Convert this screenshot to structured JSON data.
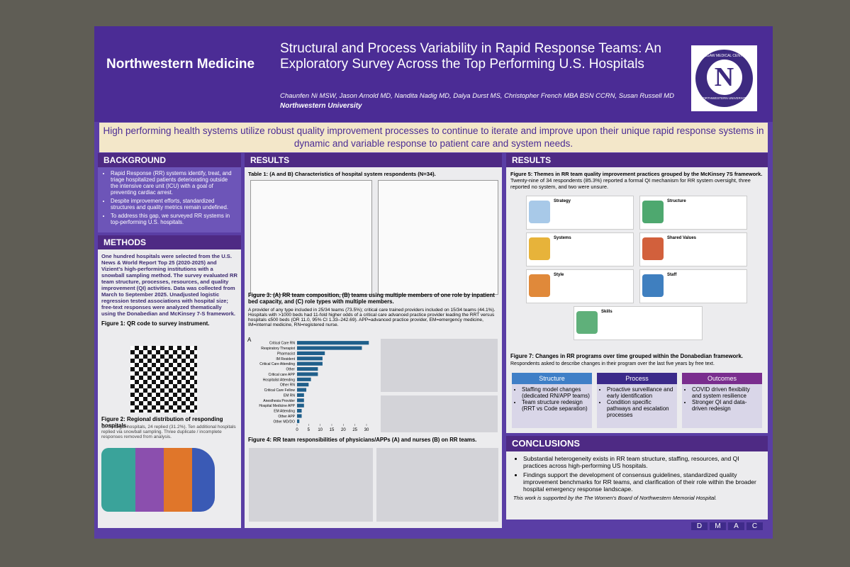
{
  "header": {
    "logo": "Northwestern Medicine",
    "title": "Structural and Process Variability in Rapid Response Teams: An Exploratory Survey Across the Top Performing U.S. Hospitals",
    "authors": "Chaunfen Ni MSW, Jason Arnold MD, Nandita Nadig MD, Dalya Durst MS, Christopher French MBA BSN CCRN, Susan Russell MD",
    "affiliation": "Northwestern University",
    "seal_top": "MCGAW MEDICAL CENTER",
    "seal_letter": "N",
    "seal_bottom": "NORTHWESTERN UNIVERSITY"
  },
  "banner": "High performing health systems utilize robust quality improvement processes to continue to iterate and improve upon their unique rapid response systems in dynamic and variable response to patient care and system needs.",
  "background": {
    "heading": "BACKGROUND",
    "bullets": [
      "Rapid Response (RR) systems identify, treat, and triage hospitalized patients deteriorating outside the intensive care unit (ICU) with a goal of preventing cardiac arrest.",
      "Despite improvement efforts, standardized structures and quality metrics remain undefined.",
      "To address this gap, we surveyed RR systems in top-performing U.S. hospitals."
    ]
  },
  "methods": {
    "heading": "METHODS",
    "text": "One hundred hospitals were selected from the U.S. News & World Report Top 25 (2020-2025) and Vizient's high-performing institutions with a snowball sampling method. The survey evaluated RR team structure, processes, resources, and quality improvement (QI) activities. Data was collected from March to September 2025. Unadjusted logistic regression tested associations with hospital size; free-text responses were analyzed thematically using the Donabedian and McKinsey 7-S framework.",
    "figure1": "Figure 1: QR code to survey instrument.",
    "figure2": "Figure 2: Regional distribution of responding hospitals.",
    "figure2_note": "Of 77 target hospitals, 24 replied (31.2%). Ten additional hospitals replied via snowball sampling. Three duplicate / incomplete responses removed from analysis."
  },
  "results_left": {
    "heading": "RESULTS",
    "table_caption": "Table 1: (A and B) Characteristics of hospital system respondents (N=34).",
    "figure3_caption": "Figure 3: (A) RR team composition, (B) teams using multiple members of one role by inpatient bed capacity, and (C) role types with multiple members.",
    "figure3_text": "A provider of any type included in 25/34 teams (73.5%); critical care trained providers included on 15/34 teams (44.1%). Hospitals with >1000 beds had 11-fold higher odds of a critical care advanced practice provider leading the RRT versus hospitals ≤500 beds (OR 11.0, 95% CI 1.33–242.69). APP=advanced practice provider, EM=emergency medicine, IM=internal medicine, RN=registered nurse.",
    "figure4_caption": "Figure 4: RR team responsibilities of physicians/APPs (A) and nurses (B) on RR teams."
  },
  "chart_data": {
    "type": "bar",
    "label": "A",
    "categories": [
      "Critical Care RN",
      "Respiratory Therapist",
      "Pharmacist",
      "IM Resident",
      "Critical Care Attending",
      "Other",
      "Critical care APP",
      "Hospitalist Attending",
      "Other RN",
      "Critical Care Fellow",
      "EM RN",
      "Anesthesia Provider",
      "Hospital Medicine APP",
      "EM Attending",
      "Other APP",
      "Other MD/DO"
    ],
    "values": [
      31,
      28,
      12,
      11,
      11,
      9,
      9,
      6,
      5,
      4,
      3,
      3,
      3,
      2,
      2,
      1
    ],
    "color": "#1f5f8b",
    "xlim": [
      0,
      30
    ],
    "xticks": [
      0,
      5,
      10,
      15,
      20,
      25,
      30
    ]
  },
  "results_right": {
    "heading": "RESULTS",
    "figure5_caption": "Figure 5: Themes in RR team quality improvement practices grouped by the McKinsey 7S framework.",
    "figure5_text": "Twenty-nine of 34 respondents (85.3%) reported a formal QI mechanism for RR system oversight, three reported no system, and two were unsure.",
    "themes": [
      "Strategy",
      "Structure",
      "Systems",
      "Shared Values",
      "Style",
      "Staff",
      "Skills"
    ],
    "figure7_caption": "Figure 7: Changes in RR programs over time grouped within the Donabedian framework.",
    "figure7_text": "Respondents asked to describe changes in their program over the last five years by free text.",
    "columns": [
      {
        "title": "Structure",
        "items": [
          "Staffing model changes (dedicated RN/APP teams)",
          "Team structure redesign (RRT vs Code separation)"
        ]
      },
      {
        "title": "Process",
        "items": [
          "Proactive surveillance and early identification",
          "Condition specific pathways and escalation processes"
        ]
      },
      {
        "title": "Outcomes",
        "items": [
          "COVID driven flexibility and system resilience",
          "Stronger QI and data-driven redesign"
        ]
      }
    ]
  },
  "conclusions": {
    "heading": "CONCLUSIONS",
    "bullets": [
      "Substantial heterogeneity exists in RR team structure, staffing, resources, and QI practices across high-performing US hospitals.",
      "Findings support the development of consensus guidelines, standardized quality improvement benchmarks for RR teams, and clarification of their role within the broader hospital emergency response landscape."
    ],
    "support": "This work is supported by the The Women's Board of Northwestern Memorial Hospital."
  },
  "footer": [
    "D",
    "M",
    "A",
    "C"
  ]
}
